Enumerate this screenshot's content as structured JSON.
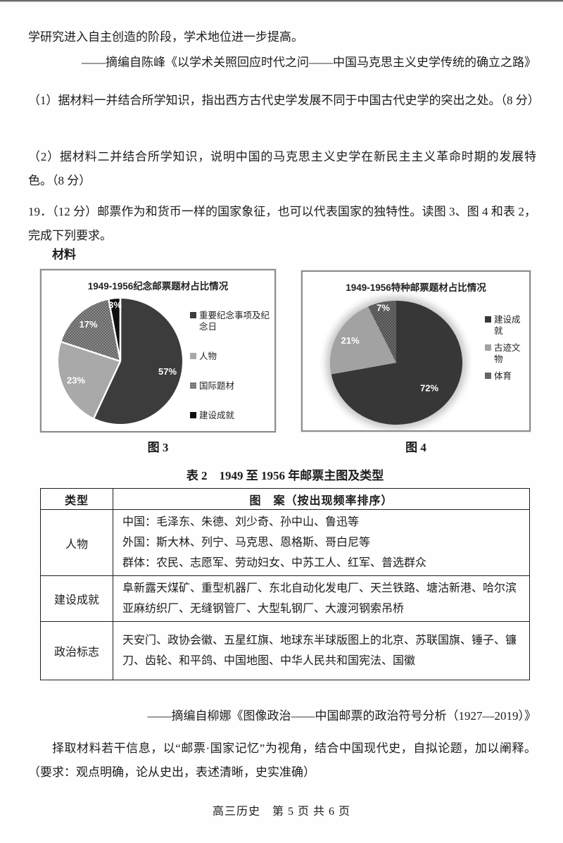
{
  "page": {
    "footer": "高三历史　第 5 页 共 6 页"
  },
  "intro": {
    "line1": "学研究进入自主创造的阶段，学术地位进一步提高。",
    "source1": "——摘编自陈峰《以学术关照回应时代之问——中国马克思主义史学传统的确立之路》"
  },
  "questions": {
    "q1": "（1）据材料一并结合所学知识，指出西方古代史学发展不同于中国古代史学的突出之处。（8 分）",
    "q2": "（2）据材料二并结合所学知识，说明中国的马克思主义史学在新民主主义革命时期的发展特色。（8 分）",
    "q19_intro": "19．（12 分）邮票作为和货币一样的国家象征，也可以代表国家的独特性。读图 3、图 4 和表 2，完成下列要求。",
    "material_label": "材料"
  },
  "chart_data": [
    {
      "type": "pie",
      "title": "1949-1956纪念邮票题材占比情况",
      "caption": "图 3",
      "legend_position": "right",
      "separators": true,
      "slices": [
        {
          "label": "重要纪念事项及纪念日",
          "value": 57,
          "color": "#3c3c3c"
        },
        {
          "label": "人物",
          "value": 23,
          "color": "#a9a9a9"
        },
        {
          "label": "国际题材",
          "value": 17,
          "color": "#8b8b8b",
          "texture": "dots",
          "dot_color": "#3f3f3f"
        },
        {
          "label": "建设成就",
          "value": 3,
          "color": "#0f0f0f"
        }
      ]
    },
    {
      "type": "pie",
      "title": "1949-1956特种邮票题材占比情况",
      "caption": "图 4",
      "legend_position": "right",
      "glow": true,
      "slices": [
        {
          "label": "建设成就",
          "value": 72,
          "color": "#373737"
        },
        {
          "label": "古迹文物",
          "value": 21,
          "color": "#a2a2a2"
        },
        {
          "label": "体育",
          "value": 7,
          "color": "#6e6e6e",
          "texture": "dots",
          "dot_color": "#2f2f2f"
        }
      ]
    }
  ],
  "table": {
    "title": "表 2　1949 至 1956 年邮票主图及类型",
    "headers": [
      "类型",
      "图　案（按出现频率排序）"
    ],
    "rows": [
      {
        "type": "人物",
        "desc": "中国：毛泽东、朱德、刘少奇、孙中山、鲁迅等\n外国：斯大林、列宁、马克思、恩格斯、哥白尼等\n群体：农民、志愿军、劳动妇女、中苏工人、红军、普选群众"
      },
      {
        "type": "建设成就",
        "desc": "阜新露天煤矿、重型机器厂、东北自动化发电厂、天兰铁路、塘沽新港、哈尔滨亚麻纺织厂、无缝钢管厂、大型轧钢厂、大渡河钢索吊桥"
      },
      {
        "type": "政治标志",
        "desc": "天安门、政协会徽、五星红旗、地球东半球版图上的北京、苏联国旗、锤子、镰刀、齿轮、和平鸽、中国地图、中华人民共和国宪法、国徽"
      }
    ],
    "source": "——摘编自柳娜《图像政治——中国邮票的政治符号分析（1927—2019）》"
  },
  "task": "择取材料若干信息，以“邮票·国家记忆”为视角，结合中国现代史，自拟论题，加以阐释。（要求：观点明确，论从史出，表述清晰，史实准确）"
}
